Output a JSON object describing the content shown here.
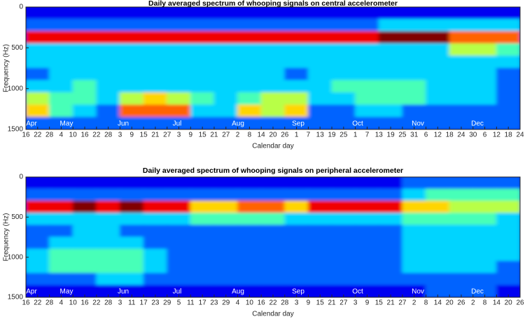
{
  "chart_data": [
    {
      "type": "heatmap",
      "title": "Daily averaged spectrum of whooping signals on central accelerometer",
      "x_label": "Calendar day",
      "y_label": "Frequency (Hz)",
      "categories": [
        "16",
        "22",
        "28",
        "4",
        "10",
        "16",
        "22",
        "28",
        "3",
        "9",
        "15",
        "21",
        "27",
        "3",
        "9",
        "15",
        "21",
        "27",
        "2",
        "8",
        "14",
        "20",
        "26",
        "1",
        "7",
        "13",
        "19",
        "25",
        "1",
        "7",
        "13",
        "19",
        "25",
        "31",
        "6",
        "12",
        "18",
        "24",
        "30",
        "6",
        "12",
        "18",
        "24"
      ],
      "month_labels": [
        "Apr",
        "May",
        "Jun",
        "Jul",
        "Aug",
        "Sep",
        "Oct",
        "Nov",
        "Dec"
      ],
      "ylim": [
        1500,
        0
      ],
      "yticks": [
        0,
        500,
        1000,
        1500
      ],
      "clim": [
        0,
        9
      ],
      "colormap": "jet",
      "z": [
        [
          1,
          1,
          1,
          1,
          1,
          1,
          1,
          1,
          1,
          1,
          1,
          1,
          1,
          1,
          1,
          1,
          1,
          1,
          1,
          1,
          1
        ],
        [
          2,
          2,
          2,
          2,
          2,
          2,
          2,
          2,
          2,
          2,
          2,
          2,
          2,
          2,
          2,
          3,
          3,
          3,
          3,
          3,
          3
        ],
        [
          8,
          8,
          8,
          8,
          8,
          8,
          8,
          8,
          8,
          8,
          8,
          8,
          8,
          8,
          8,
          9,
          9,
          9,
          7,
          7,
          7
        ],
        [
          3,
          3,
          3,
          3,
          3,
          3,
          3,
          3,
          3,
          3,
          3,
          3,
          3,
          3,
          3,
          3,
          3,
          3,
          5,
          5,
          4
        ],
        [
          3,
          3,
          3,
          3,
          3,
          3,
          3,
          3,
          3,
          3,
          3,
          3,
          3,
          3,
          3,
          3,
          3,
          3,
          3,
          3,
          3
        ],
        [
          2,
          3,
          3,
          3,
          3,
          3,
          3,
          3,
          3,
          3,
          3,
          2,
          3,
          3,
          3,
          3,
          3,
          3,
          3,
          3,
          2
        ],
        [
          3,
          3,
          4,
          3,
          3,
          3,
          3,
          3,
          3,
          3,
          3,
          3,
          3,
          4,
          4,
          4,
          4,
          3,
          3,
          3,
          2
        ],
        [
          5,
          4,
          4,
          3,
          5,
          6,
          5,
          4,
          3,
          4,
          5,
          5,
          3,
          3,
          4,
          4,
          4,
          3,
          3,
          3,
          2
        ],
        [
          6,
          4,
          3,
          2,
          7,
          7,
          7,
          3,
          3,
          6,
          5,
          6,
          2,
          2,
          3,
          3,
          2,
          2,
          2,
          2,
          2
        ],
        [
          2,
          2,
          2,
          2,
          2,
          2,
          2,
          2,
          2,
          2,
          2,
          2,
          2,
          2,
          2,
          2,
          2,
          2,
          2,
          2,
          2
        ]
      ]
    },
    {
      "type": "heatmap",
      "title": "Daily averaged spectrum of whooping signals on peripheral accelerometer",
      "x_label": "Calendar day",
      "y_label": "Frequency (Hz)",
      "categories": [
        "16",
        "22",
        "28",
        "4",
        "10",
        "16",
        "22",
        "28",
        "3",
        "11",
        "17",
        "23",
        "29",
        "5",
        "11",
        "17",
        "23",
        "29",
        "4",
        "10",
        "16",
        "22",
        "28",
        "3",
        "9",
        "15",
        "21",
        "27",
        "3",
        "9",
        "15",
        "21",
        "27",
        "2",
        "8",
        "14",
        "20",
        "26",
        "2",
        "8",
        "14",
        "20",
        "26"
      ],
      "month_labels": [
        "Apr",
        "May",
        "Jun",
        "Jul",
        "Aug",
        "Sep",
        "Oct",
        "Nov",
        "Dec"
      ],
      "ylim": [
        1500,
        0
      ],
      "yticks": [
        0,
        500,
        1000,
        1500
      ],
      "clim": [
        0,
        9
      ],
      "colormap": "jet",
      "z": [
        [
          1,
          1,
          1,
          1,
          1,
          1,
          1,
          1,
          1,
          1,
          1,
          1,
          1,
          1,
          1,
          1,
          2,
          2,
          2,
          2,
          2
        ],
        [
          2,
          2,
          2,
          2,
          2,
          2,
          2,
          2,
          2,
          2,
          2,
          2,
          2,
          2,
          2,
          2,
          3,
          4,
          4,
          4,
          4
        ],
        [
          8,
          8,
          9,
          8,
          9,
          8,
          8,
          6,
          6,
          7,
          7,
          6,
          8,
          8,
          8,
          8,
          6,
          6,
          5,
          5,
          5
        ],
        [
          3,
          3,
          3,
          3,
          3,
          3,
          3,
          4,
          4,
          4,
          4,
          3,
          3,
          3,
          3,
          3,
          4,
          4,
          4,
          4,
          3
        ],
        [
          2,
          2,
          3,
          3,
          2,
          2,
          2,
          2,
          2,
          2,
          2,
          2,
          2,
          2,
          2,
          2,
          3,
          3,
          3,
          3,
          3
        ],
        [
          2,
          3,
          3,
          3,
          3,
          2,
          2,
          2,
          2,
          2,
          2,
          2,
          2,
          2,
          2,
          2,
          3,
          3,
          3,
          3,
          3
        ],
        [
          3,
          4,
          4,
          4,
          4,
          3,
          2,
          2,
          2,
          2,
          2,
          2,
          2,
          2,
          2,
          2,
          3,
          3,
          3,
          3,
          3
        ],
        [
          3,
          4,
          4,
          4,
          4,
          3,
          2,
          2,
          2,
          2,
          2,
          2,
          2,
          2,
          2,
          2,
          3,
          3,
          3,
          3,
          2
        ],
        [
          2,
          2,
          2,
          3,
          3,
          2,
          2,
          2,
          2,
          2,
          2,
          2,
          2,
          2,
          2,
          2,
          2,
          2,
          2,
          2,
          2
        ],
        [
          1,
          1,
          1,
          1,
          1,
          1,
          1,
          1,
          1,
          1,
          1,
          1,
          1,
          1,
          1,
          1,
          1,
          2,
          2,
          2,
          1
        ]
      ]
    }
  ]
}
